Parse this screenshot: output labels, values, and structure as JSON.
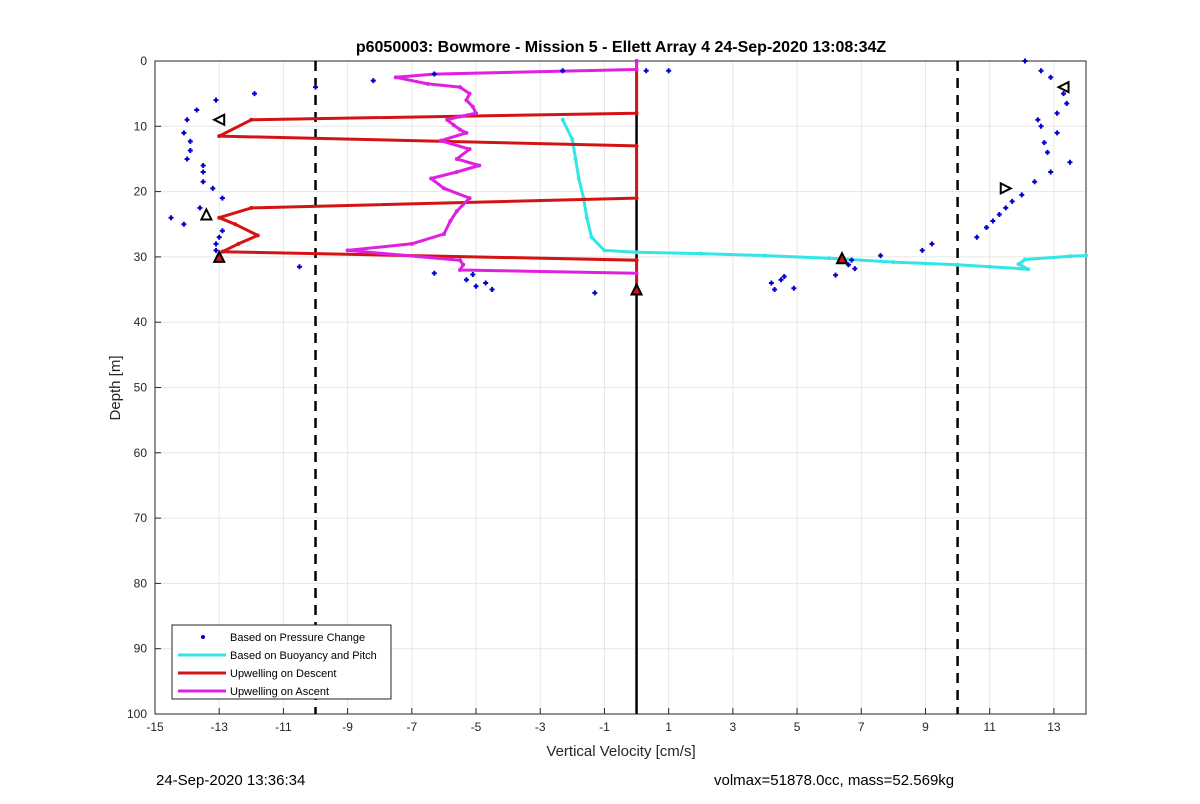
{
  "footer": {
    "left": "24-Sep-2020 13:36:34",
    "right": "volmax=51878.0cc, mass=52.569kg"
  },
  "chart_data": {
    "type": "line",
    "title": "p6050003: Bowmore - Mission 5 - Ellett Array 4 24-Sep-2020 13:08:34Z",
    "xlabel": "Vertical Velocity [cm/s]",
    "ylabel": "Depth [m]",
    "xlim": [
      -15,
      14
    ],
    "ylim": [
      0,
      100
    ],
    "y_reversed": true,
    "grid": true,
    "xticks": [
      -15,
      -13,
      -11,
      -9,
      -7,
      -5,
      -3,
      -1,
      1,
      3,
      5,
      7,
      9,
      11,
      13
    ],
    "yticks": [
      0,
      10,
      20,
      30,
      40,
      50,
      60,
      70,
      80,
      90,
      100
    ],
    "legend_position": "bottom-left",
    "colors": {
      "pressure": "#0000cc",
      "buoyancy": "#33e6e6",
      "descent": "#d41414",
      "ascent": "#e020e0",
      "zero_line": "#000000",
      "limit_lines": "#000000"
    },
    "reference_lines": {
      "zero": 0,
      "limits": [
        -10,
        10
      ]
    },
    "series": [
      {
        "name": "Based on Pressure Change",
        "style": "markers",
        "points": [
          [
            -13.1,
            6
          ],
          [
            -13.7,
            7.5
          ],
          [
            -14,
            9
          ],
          [
            -14.1,
            11
          ],
          [
            -13.9,
            12.3
          ],
          [
            -13.9,
            13.7
          ],
          [
            -14,
            15
          ],
          [
            -13.5,
            16
          ],
          [
            -13.5,
            17
          ],
          [
            -13.5,
            18.5
          ],
          [
            -13.2,
            19.5
          ],
          [
            -12.9,
            21
          ],
          [
            -13.6,
            22.5
          ],
          [
            -14.5,
            24
          ],
          [
            -14.1,
            25
          ],
          [
            -12.9,
            26
          ],
          [
            -13,
            27
          ],
          [
            -13.1,
            28
          ],
          [
            -13.1,
            29
          ],
          [
            -13,
            30
          ],
          [
            -11.9,
            5
          ],
          [
            -10,
            4
          ],
          [
            -8.2,
            3
          ],
          [
            -6.3,
            2
          ],
          [
            -2.3,
            1.5
          ],
          [
            0.3,
            1.5
          ],
          [
            1,
            1.5
          ],
          [
            -10.5,
            31.5
          ],
          [
            -6.3,
            32.5
          ],
          [
            -5.3,
            33.5
          ],
          [
            -5.1,
            32.7
          ],
          [
            -5,
            34.5
          ],
          [
            -4.7,
            34
          ],
          [
            -4.5,
            35
          ],
          [
            -1.3,
            35.5
          ],
          [
            12.1,
            0
          ],
          [
            12.6,
            1.5
          ],
          [
            12.9,
            2.5
          ],
          [
            13.3,
            5
          ],
          [
            13.4,
            6.5
          ],
          [
            13.1,
            8
          ],
          [
            12.5,
            9
          ],
          [
            12.6,
            10
          ],
          [
            13.1,
            11
          ],
          [
            12.7,
            12.5
          ],
          [
            12.8,
            14
          ],
          [
            13.5,
            15.5
          ],
          [
            12.9,
            17
          ],
          [
            12.4,
            18.5
          ],
          [
            12,
            20.5
          ],
          [
            11.7,
            21.5
          ],
          [
            11.5,
            22.5
          ],
          [
            11.3,
            23.5
          ],
          [
            11.1,
            24.5
          ],
          [
            10.9,
            25.5
          ],
          [
            10.6,
            27
          ],
          [
            9.2,
            28
          ],
          [
            8.9,
            29
          ],
          [
            7.6,
            29.8
          ],
          [
            6.7,
            30.5
          ],
          [
            6.6,
            31.2
          ],
          [
            6.8,
            31.8
          ],
          [
            6.2,
            32.8
          ],
          [
            4.6,
            33
          ],
          [
            4.5,
            33.5
          ],
          [
            4.2,
            34
          ],
          [
            4.3,
            35
          ],
          [
            4.9,
            34.8
          ]
        ]
      },
      {
        "name": "Based on Buoyancy and Pitch",
        "style": "line",
        "points": [
          [
            -2.3,
            9
          ],
          [
            -2,
            12
          ],
          [
            -1.9,
            15
          ],
          [
            -1.8,
            18
          ],
          [
            -1.65,
            21
          ],
          [
            -1.55,
            24
          ],
          [
            -1.4,
            27
          ],
          [
            -1,
            29
          ],
          [
            0,
            29.3
          ],
          [
            2,
            29.5
          ],
          [
            4,
            29.8
          ],
          [
            6,
            30.2
          ],
          [
            8,
            30.8
          ],
          [
            10,
            31.2
          ],
          [
            11,
            31.5
          ],
          [
            12,
            31.8
          ],
          [
            12.2,
            31.9
          ],
          [
            11.9,
            31.1
          ],
          [
            12.1,
            30.4
          ],
          [
            13.5,
            29.9
          ],
          [
            14,
            29.8
          ]
        ]
      },
      {
        "name": "Upwelling on Descent",
        "style": "line",
        "points": [
          [
            0,
            0
          ],
          [
            0,
            8
          ],
          [
            -12,
            9
          ],
          [
            -13,
            11.5
          ],
          [
            0,
            13
          ],
          [
            0,
            21
          ],
          [
            -12,
            22.5
          ],
          [
            -13,
            24
          ],
          [
            -12.5,
            25
          ],
          [
            -11.8,
            26.7
          ],
          [
            -12.4,
            28
          ],
          [
            -12.9,
            29.2
          ],
          [
            0,
            30.5
          ],
          [
            0,
            35
          ]
        ]
      },
      {
        "name": "Upwelling on Ascent",
        "style": "line",
        "points": [
          [
            0,
            32.5
          ],
          [
            -5.5,
            32
          ],
          [
            -5.4,
            31.2
          ],
          [
            -5.5,
            30.5
          ],
          [
            -9,
            29
          ],
          [
            -7,
            28
          ],
          [
            -6,
            26.5
          ],
          [
            -5.8,
            24.5
          ],
          [
            -5.6,
            23
          ],
          [
            -5.2,
            21
          ],
          [
            -6,
            19.5
          ],
          [
            -6.4,
            18
          ],
          [
            -5.6,
            17
          ],
          [
            -4.9,
            16
          ],
          [
            -5.6,
            15
          ],
          [
            -5.2,
            13.5
          ],
          [
            -6.1,
            12.2
          ],
          [
            -5.3,
            11
          ],
          [
            -5.5,
            10.5
          ],
          [
            -5.7,
            9.8
          ],
          [
            -5.9,
            9
          ],
          [
            -5.5,
            8.5
          ],
          [
            -5,
            8
          ],
          [
            -5.1,
            7
          ],
          [
            -5.3,
            6
          ],
          [
            -5.2,
            5
          ],
          [
            -5.5,
            4
          ],
          [
            -6.5,
            3.5
          ],
          [
            -7.5,
            2.5
          ],
          [
            -6.3,
            2
          ],
          [
            0,
            1.3
          ],
          [
            0,
            0
          ]
        ]
      }
    ],
    "markers": [
      {
        "shape": "triangle-left",
        "x": -13,
        "y": 9,
        "color": "#000000",
        "fill": "none"
      },
      {
        "shape": "triangle-up",
        "x": -13.4,
        "y": 23.5,
        "color": "#000000",
        "fill": "none"
      },
      {
        "shape": "triangle-up",
        "x": -13,
        "y": 30,
        "color": "#000000",
        "fill": "#d41414"
      },
      {
        "shape": "triangle-up",
        "x": 0,
        "y": 35,
        "color": "#000000",
        "fill": "#d41414"
      },
      {
        "shape": "triangle-up",
        "x": 6.4,
        "y": 30.2,
        "color": "#000000",
        "fill": "#d41414"
      },
      {
        "shape": "triangle-left",
        "x": 13.3,
        "y": 4,
        "color": "#000000",
        "fill": "none"
      },
      {
        "shape": "triangle-right",
        "x": 11.5,
        "y": 19.5,
        "color": "#000000",
        "fill": "none"
      }
    ]
  }
}
